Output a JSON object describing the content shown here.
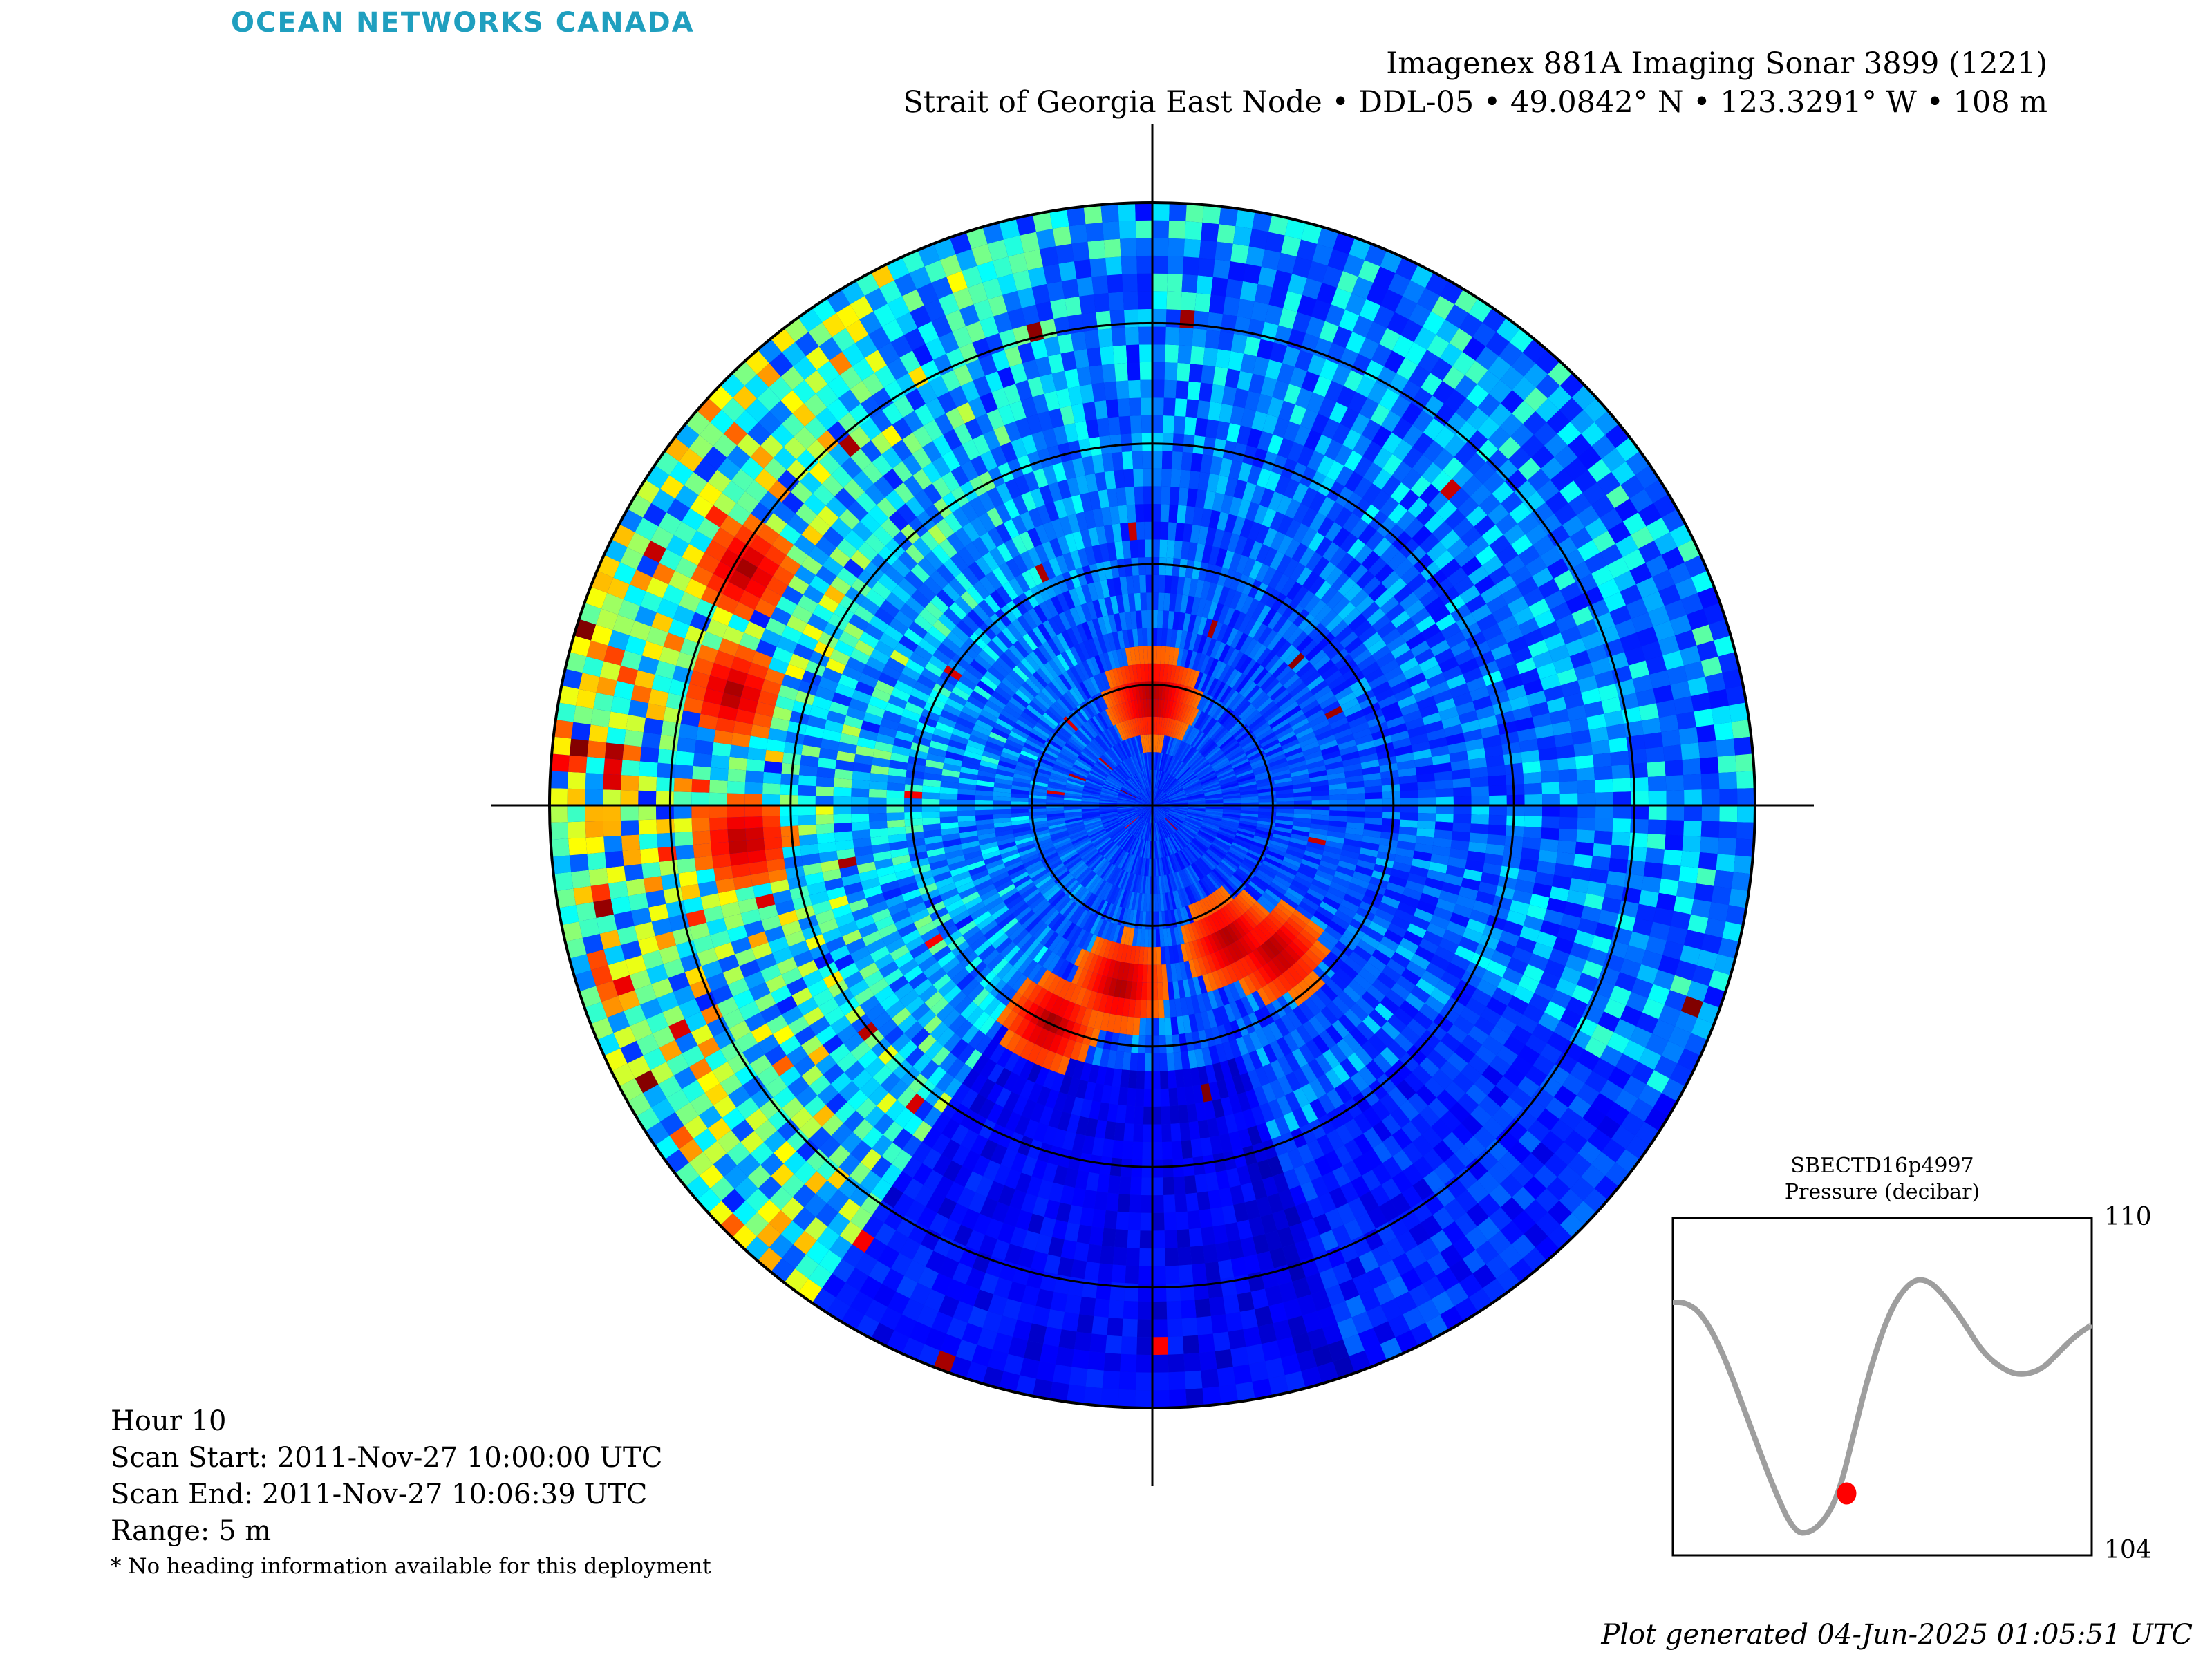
{
  "header": {
    "logo_text": "OCEAN NETWORKS CANADA",
    "title": "Imagenex 881A Imaging Sonar 3899 (1221)",
    "subtitle": "Strait of Georgia East Node • DDL-05 • 49.0842° N • 123.3291° W • 108 m"
  },
  "info": {
    "hour": "Hour 10",
    "scan_start": "Scan Start: 2011-Nov-27 10:00:00 UTC",
    "scan_end": "Scan End: 2011-Nov-27 10:06:39 UTC",
    "range": "Range: 5 m",
    "note": "* No heading information available for this deployment"
  },
  "footer": {
    "generated": "Plot generated 04-Jun-2025 01:05:51 UTC"
  },
  "chart_data": [
    {
      "type": "heatmap",
      "name": "sonar-polar-scan",
      "range_m": 5,
      "range_rings_m": [
        1,
        2,
        3,
        4,
        5
      ],
      "colormap": "jet",
      "colors": {
        "low": "#00008f",
        "mid": "#1e5cff",
        "high": "#800000"
      },
      "strong_returns": [
        {
          "bearing_deg_from_up": 0,
          "range_m": 0.9
        },
        {
          "bearing_deg_from_up": 150,
          "range_m": 1.3
        },
        {
          "bearing_deg_from_up": 140,
          "range_m": 1.6
        },
        {
          "bearing_deg_from_up": 205,
          "range_m": 2.0
        },
        {
          "bearing_deg_from_up": 190,
          "range_m": 1.5
        },
        {
          "bearing_deg_from_up": 265,
          "range_m": 3.4
        },
        {
          "bearing_deg_from_up": 285,
          "range_m": 3.6
        },
        {
          "bearing_deg_from_up": 300,
          "range_m": 3.9
        }
      ]
    },
    {
      "type": "line",
      "name": "pressure-inset",
      "title": "SBECTD16p4997",
      "ylabel": "Pressure (decibar)",
      "ylim": [
        104,
        110
      ],
      "yticks": [
        "110",
        "104"
      ],
      "line_color": "#9e9e9e",
      "marker_color": "#ff0000",
      "x": [
        0,
        0.03,
        0.07,
        0.12,
        0.18,
        0.24,
        0.29,
        0.33,
        0.37,
        0.4,
        0.43,
        0.47,
        0.52,
        0.57,
        0.61,
        0.65,
        0.69,
        0.74,
        0.79,
        0.83,
        0.88,
        0.92,
        0.96,
        1.0
      ],
      "values": [
        108.5,
        108.5,
        108.3,
        107.6,
        106.4,
        105.2,
        104.4,
        104.4,
        104.7,
        105.2,
        106.1,
        107.3,
        108.4,
        108.9,
        108.9,
        108.6,
        108.2,
        107.6,
        107.3,
        107.2,
        107.3,
        107.6,
        107.9,
        108.1
      ],
      "current_point": {
        "x": 0.415,
        "value": 105.1
      }
    }
  ]
}
